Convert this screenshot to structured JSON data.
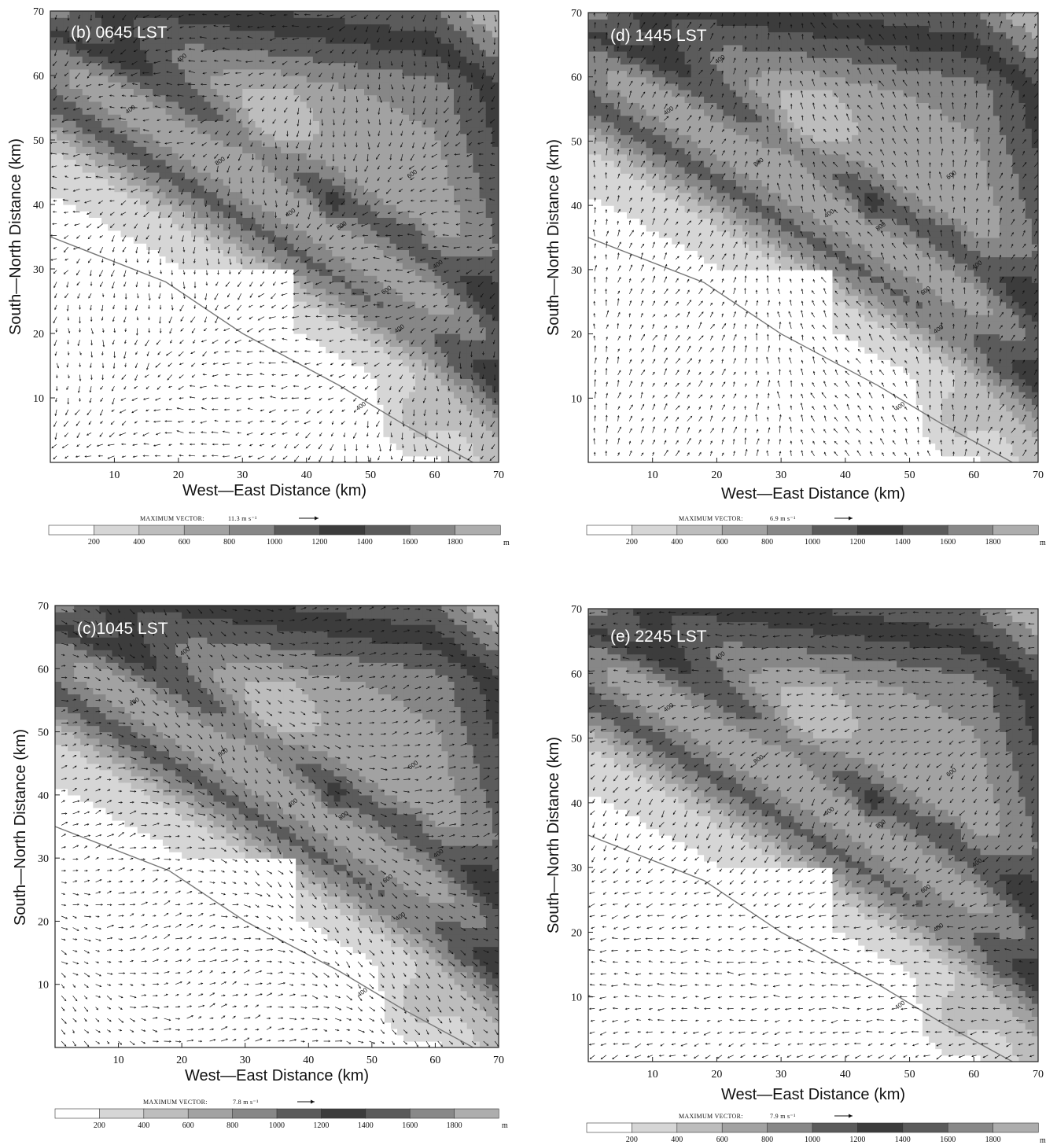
{
  "common": {
    "xlabel": "West—East Distance (km)",
    "ylabel": "South—North Distance (km)",
    "x_ticks": [
      "10",
      "20",
      "30",
      "40",
      "50",
      "60",
      "70"
    ],
    "y_ticks": [
      "10",
      "20",
      "30",
      "40",
      "50",
      "60",
      "70"
    ],
    "colorbar_ticks": [
      "200",
      "400",
      "600",
      "800",
      "1000",
      "1200",
      "1400",
      "1600",
      "1800"
    ],
    "colorbar_unit": "m",
    "colorbar_colors": [
      "#ffffff",
      "#d6d6d6",
      "#bdbdbd",
      "#a2a2a2",
      "#878787",
      "#5b5b5b",
      "#3c3c3c",
      "#5b5b5b",
      "#888888",
      "#adadad"
    ],
    "max_vector_label": "MAXIMUM VECTOR:",
    "contour_labels": [
      "400",
      "600",
      "800",
      "1000"
    ]
  },
  "panels": [
    {
      "id": "b",
      "label": "(b) 0645 LST",
      "max_vector": "11.3 m s⁻¹"
    },
    {
      "id": "d",
      "label": "(d) 1445 LST",
      "max_vector": "6.9 m s⁻¹"
    },
    {
      "id": "c",
      "label": "(c)1045 LST",
      "max_vector": "7.8 m s⁻¹"
    },
    {
      "id": "e",
      "label": "(e) 2245 LST",
      "max_vector": "7.9 m s⁻¹"
    }
  ]
}
